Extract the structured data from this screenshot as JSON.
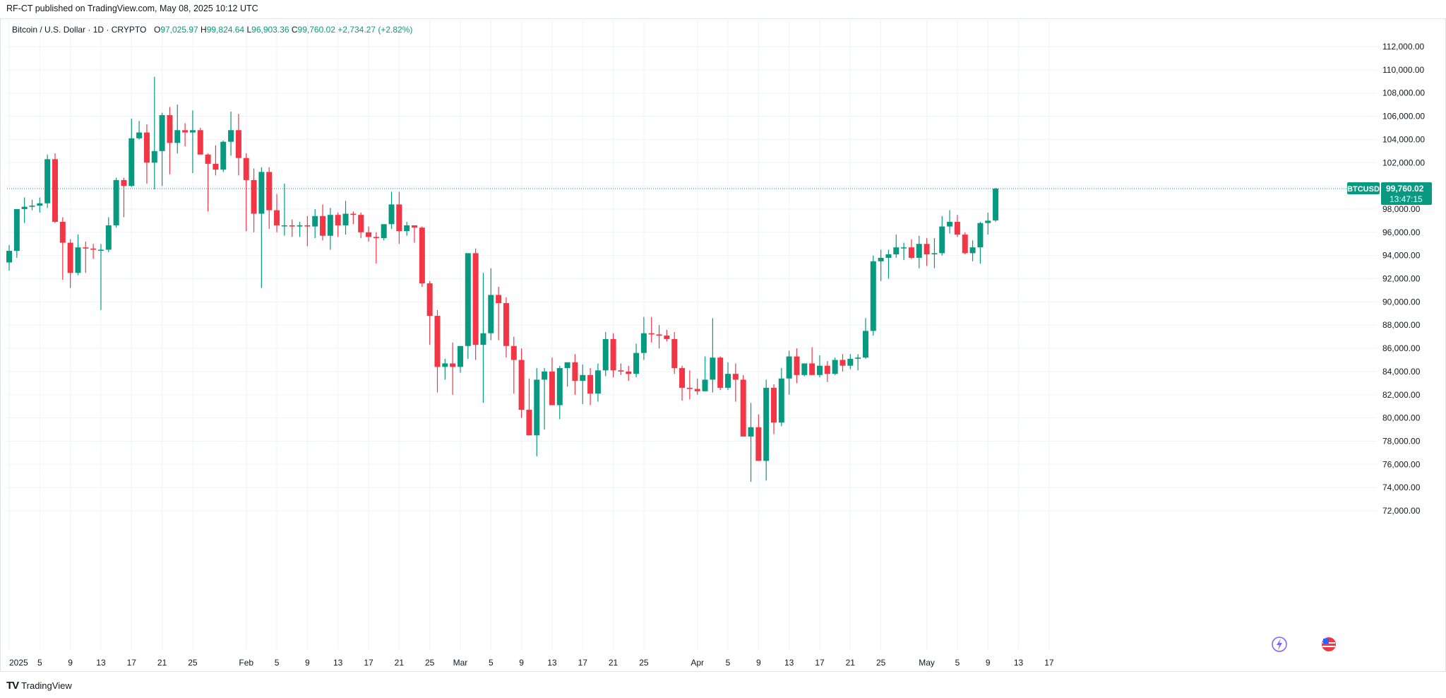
{
  "header": {
    "published_by": "RF-CT published on TradingView.com, May 08, 2025 10:12 UTC"
  },
  "legend": {
    "symbol": "Bitcoin / U.S. Dollar · 1D · CRYPTO",
    "open_label": "O",
    "open": "97,025.97",
    "high_label": "H",
    "high": "99,824.64",
    "low_label": "L",
    "low": "96,903.36",
    "close_label": "C",
    "close": "99,760.02",
    "change": "+2,734.27 (+2.82%)"
  },
  "price_tag": {
    "symbol": "BTCUSD",
    "price": "99,760.02",
    "countdown": "13:47:15"
  },
  "footer": {
    "brand": "TradingView",
    "logo": "TV"
  },
  "colors": {
    "up": "#089981",
    "down": "#f23645",
    "grid": "#f0f3fa",
    "text": "#131722",
    "axis_text": "#131722"
  },
  "icons": [
    "lightning-icon",
    "us-flag-icon"
  ],
  "chart_data": {
    "type": "candlestick",
    "title": "Bitcoin / U.S. Dollar · 1D · CRYPTO",
    "ylim": [
      71000,
      113000
    ],
    "y_ticks": [
      72000,
      74000,
      76000,
      78000,
      80000,
      82000,
      84000,
      86000,
      88000,
      90000,
      92000,
      94000,
      96000,
      98000,
      100000,
      102000,
      104000,
      106000,
      108000,
      110000,
      112000
    ],
    "y_tick_labels": [
      "72,000.00",
      "74,000.00",
      "76,000.00",
      "78,000.00",
      "80,000.00",
      "82,000.00",
      "84,000.00",
      "86,000.00",
      "88,000.00",
      "90,000.00",
      "92,000.00",
      "94,000.00",
      "96,000.00",
      "98,000.00",
      "100,000.00",
      "102,000.00",
      "104,000.00",
      "106,000.00",
      "108,000.00",
      "110,000.00",
      "112,000.00"
    ],
    "x_ticks": [
      {
        "index": 0,
        "label": "2025"
      },
      {
        "index": 4,
        "label": "5"
      },
      {
        "index": 8,
        "label": "9"
      },
      {
        "index": 12,
        "label": "13"
      },
      {
        "index": 16,
        "label": "17"
      },
      {
        "index": 20,
        "label": "21"
      },
      {
        "index": 24,
        "label": "25"
      },
      {
        "index": 31,
        "label": "Feb"
      },
      {
        "index": 35,
        "label": "5"
      },
      {
        "index": 39,
        "label": "9"
      },
      {
        "index": 43,
        "label": "13"
      },
      {
        "index": 47,
        "label": "17"
      },
      {
        "index": 51,
        "label": "21"
      },
      {
        "index": 55,
        "label": "25"
      },
      {
        "index": 59,
        "label": "Mar"
      },
      {
        "index": 63,
        "label": "5"
      },
      {
        "index": 67,
        "label": "9"
      },
      {
        "index": 71,
        "label": "13"
      },
      {
        "index": 75,
        "label": "17"
      },
      {
        "index": 79,
        "label": "21"
      },
      {
        "index": 83,
        "label": "25"
      },
      {
        "index": 90,
        "label": "Apr"
      },
      {
        "index": 94,
        "label": "5"
      },
      {
        "index": 98,
        "label": "9"
      },
      {
        "index": 102,
        "label": "13"
      },
      {
        "index": 106,
        "label": "17"
      },
      {
        "index": 110,
        "label": "21"
      },
      {
        "index": 114,
        "label": "25"
      },
      {
        "index": 120,
        "label": "May"
      },
      {
        "index": 124,
        "label": "5"
      },
      {
        "index": 128,
        "label": "9"
      },
      {
        "index": 132,
        "label": "13"
      },
      {
        "index": 136,
        "label": "17"
      }
    ],
    "first_date": "2025-01-01",
    "candles_ohlc": [
      [
        93400,
        94900,
        92700,
        94400
      ],
      [
        94400,
        98000,
        93800,
        98000
      ],
      [
        98000,
        99000,
        96800,
        98200
      ],
      [
        98200,
        98800,
        97900,
        98300
      ],
      [
        98300,
        99000,
        97700,
        98500
      ],
      [
        98500,
        102700,
        98100,
        102300
      ],
      [
        102300,
        102800,
        96800,
        96900
      ],
      [
        96900,
        97300,
        91900,
        95100
      ],
      [
        95100,
        95400,
        91200,
        92500
      ],
      [
        92500,
        95800,
        92300,
        94700
      ],
      [
        94700,
        95200,
        92500,
        94600
      ],
      [
        94600,
        95000,
        93700,
        94500
      ],
      [
        94500,
        95000,
        89300,
        94500
      ],
      [
        94500,
        97300,
        94300,
        96600
      ],
      [
        96600,
        100700,
        96400,
        100500
      ],
      [
        100500,
        100700,
        97300,
        100000
      ],
      [
        100000,
        105800,
        99900,
        104100
      ],
      [
        104100,
        105600,
        104000,
        104600
      ],
      [
        104600,
        105300,
        100200,
        102000
      ],
      [
        102000,
        109400,
        99700,
        103000
      ],
      [
        103000,
        106300,
        100000,
        106100
      ],
      [
        106100,
        106800,
        101000,
        103700
      ],
      [
        103700,
        107000,
        102800,
        104800
      ],
      [
        104800,
        105400,
        103400,
        104600
      ],
      [
        104600,
        106500,
        101100,
        104800
      ],
      [
        104800,
        105000,
        102700,
        102700
      ],
      [
        102700,
        102800,
        97800,
        101900
      ],
      [
        101900,
        103500,
        100900,
        101400
      ],
      [
        101400,
        103900,
        101200,
        103800
      ],
      [
        103800,
        106400,
        102600,
        104800
      ],
      [
        104800,
        106200,
        100900,
        102400
      ],
      [
        102400,
        102800,
        96100,
        100500
      ],
      [
        100500,
        101500,
        96000,
        97600
      ],
      [
        97600,
        101600,
        91200,
        101200
      ],
      [
        101200,
        101600,
        96300,
        97900
      ],
      [
        97900,
        99300,
        96000,
        96600
      ],
      [
        96600,
        100200,
        95700,
        96600
      ],
      [
        96600,
        97100,
        95600,
        96500
      ],
      [
        96500,
        96900,
        95600,
        96600
      ],
      [
        96600,
        97400,
        94800,
        96500
      ],
      [
        96500,
        98000,
        95500,
        97400
      ],
      [
        97400,
        98400,
        95300,
        95700
      ],
      [
        95700,
        98100,
        94500,
        97500
      ],
      [
        97500,
        97700,
        95600,
        96600
      ],
      [
        96600,
        98700,
        95800,
        97600
      ],
      [
        97600,
        97800,
        96700,
        97500
      ],
      [
        97500,
        97700,
        95500,
        96000
      ],
      [
        96000,
        96500,
        95200,
        95600
      ],
      [
        95600,
        96000,
        93300,
        95500
      ],
      [
        95500,
        96600,
        95300,
        96700
      ],
      [
        96700,
        99500,
        96300,
        98400
      ],
      [
        98400,
        99500,
        95000,
        96100
      ],
      [
        96100,
        96900,
        95700,
        96600
      ],
      [
        96600,
        96600,
        95100,
        96400
      ],
      [
        96400,
        96500,
        91300,
        91600
      ],
      [
        91600,
        91800,
        86300,
        88800
      ],
      [
        88800,
        89300,
        82200,
        84400
      ],
      [
        84400,
        85100,
        83300,
        84700
      ],
      [
        84700,
        86500,
        82000,
        84400
      ],
      [
        84400,
        86200,
        83900,
        86200
      ],
      [
        86200,
        94200,
        85100,
        94200
      ],
      [
        94200,
        94600,
        85000,
        86300
      ],
      [
        86300,
        92500,
        81300,
        87300
      ],
      [
        87300,
        92900,
        86700,
        90600
      ],
      [
        90600,
        91300,
        86700,
        89900
      ],
      [
        89900,
        90400,
        85200,
        86200
      ],
      [
        86200,
        87000,
        82100,
        85000
      ],
      [
        85000,
        86000,
        80000,
        80700
      ],
      [
        80700,
        83400,
        78600,
        78500
      ],
      [
        78500,
        84300,
        76700,
        83300
      ],
      [
        83300,
        84300,
        79000,
        84000
      ],
      [
        84000,
        85200,
        81300,
        81100
      ],
      [
        81100,
        84500,
        79900,
        84300
      ],
      [
        84300,
        84700,
        82700,
        84800
      ],
      [
        84800,
        85500,
        82000,
        83200
      ],
      [
        83200,
        84600,
        81200,
        83700
      ],
      [
        83700,
        84300,
        81100,
        82100
      ],
      [
        82100,
        84700,
        81400,
        84100
      ],
      [
        84100,
        87400,
        83600,
        86800
      ],
      [
        86800,
        87300,
        83500,
        84100
      ],
      [
        84100,
        84700,
        83700,
        84000
      ],
      [
        84000,
        84500,
        83200,
        83800
      ],
      [
        83800,
        86400,
        83500,
        85600
      ],
      [
        85600,
        88700,
        85000,
        87300
      ],
      [
        87300,
        88700,
        86500,
        87200
      ],
      [
        87200,
        88000,
        86000,
        87100
      ],
      [
        87100,
        87600,
        86600,
        86800
      ],
      [
        86800,
        87400,
        83800,
        84300
      ],
      [
        84300,
        84500,
        81500,
        82600
      ],
      [
        82600,
        84100,
        81600,
        82500
      ],
      [
        82500,
        83400,
        82000,
        82300
      ],
      [
        82300,
        85300,
        82300,
        83300
      ],
      [
        83300,
        88600,
        82200,
        85200
      ],
      [
        85200,
        85300,
        82400,
        82600
      ],
      [
        82600,
        84800,
        82400,
        83800
      ],
      [
        83800,
        84700,
        81400,
        83300
      ],
      [
        83300,
        83700,
        80800,
        78400
      ],
      [
        78400,
        81300,
        74500,
        79200
      ],
      [
        79200,
        80300,
        76300,
        76300
      ],
      [
        76300,
        83300,
        74600,
        82600
      ],
      [
        82600,
        82900,
        78600,
        79600
      ],
      [
        79600,
        84300,
        79300,
        83400
      ],
      [
        83400,
        85800,
        82000,
        85300
      ],
      [
        85300,
        86000,
        83000,
        83700
      ],
      [
        83700,
        84400,
        83600,
        84700
      ],
      [
        84700,
        86100,
        83800,
        83700
      ],
      [
        83700,
        85400,
        83500,
        84500
      ],
      [
        84500,
        84900,
        83100,
        83800
      ],
      [
        83800,
        85200,
        83700,
        85000
      ],
      [
        85000,
        85500,
        84000,
        84500
      ],
      [
        84500,
        85500,
        84200,
        85100
      ],
      [
        85100,
        85500,
        84100,
        85200
      ],
      [
        85200,
        88600,
        85100,
        87500
      ],
      [
        87500,
        94000,
        87100,
        93500
      ],
      [
        93500,
        94500,
        91800,
        93800
      ],
      [
        93800,
        94500,
        92000,
        94100
      ],
      [
        94100,
        95800,
        93800,
        94700
      ],
      [
        94700,
        95100,
        93600,
        94700
      ],
      [
        94700,
        95400,
        93700,
        93800
      ],
      [
        93800,
        95700,
        92900,
        95000
      ],
      [
        95000,
        95500,
        93100,
        94100
      ],
      [
        94100,
        95500,
        92900,
        94200
      ],
      [
        94200,
        97400,
        94000,
        96500
      ],
      [
        96500,
        97900,
        95900,
        96900
      ],
      [
        96900,
        97500,
        95600,
        95800
      ],
      [
        95800,
        96000,
        94100,
        94200
      ],
      [
        94200,
        95300,
        93500,
        94700
      ],
      [
        94700,
        96900,
        93300,
        96800
      ],
      [
        96800,
        97700,
        95800,
        97000
      ],
      [
        97025.97,
        99824.64,
        96903.36,
        99760.02
      ]
    ]
  }
}
